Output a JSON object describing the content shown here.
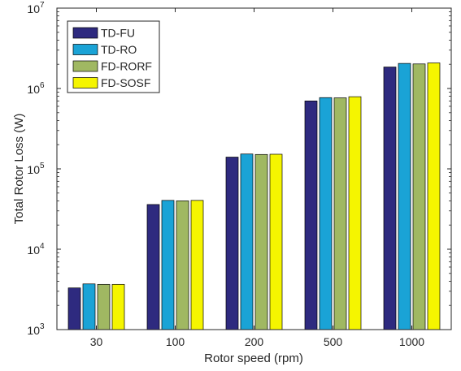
{
  "chart_data": {
    "type": "bar",
    "title": "",
    "xlabel": "Rotor speed (rpm)",
    "ylabel": "Total Rotor Loss (W)",
    "yscale": "log",
    "ylim": [
      1000,
      10000000
    ],
    "y_ticks": [
      {
        "value": 1000,
        "base": "10",
        "exp": "3"
      },
      {
        "value": 10000,
        "base": "10",
        "exp": "4"
      },
      {
        "value": 100000,
        "base": "10",
        "exp": "5"
      },
      {
        "value": 1000000,
        "base": "10",
        "exp": "6"
      },
      {
        "value": 10000000,
        "base": "10",
        "exp": "7"
      }
    ],
    "categories": [
      "30",
      "100",
      "200",
      "500",
      "1000"
    ],
    "series": [
      {
        "name": "TD-FU",
        "color": "#2e2a7f",
        "values": [
          3300,
          36000,
          140000,
          700000,
          1850000
        ]
      },
      {
        "name": "TD-RO",
        "color": "#1aa3d6",
        "values": [
          3700,
          40500,
          153000,
          770000,
          2050000
        ]
      },
      {
        "name": "FD-RORF",
        "color": "#a0b862",
        "values": [
          3650,
          40000,
          151000,
          765000,
          2020000
        ]
      },
      {
        "name": "FD-SOSF",
        "color": "#f5f500",
        "values": [
          3650,
          40500,
          152000,
          790000,
          2080000
        ]
      }
    ],
    "grid": false,
    "legend_position": "top-left"
  }
}
